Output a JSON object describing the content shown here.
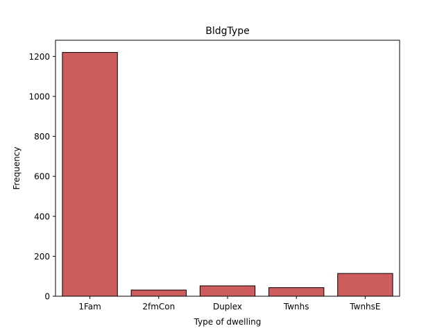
{
  "chart_data": {
    "type": "bar",
    "title": "BldgType",
    "xlabel": "Type of dwelling",
    "ylabel": "Frequency",
    "categories": [
      "1Fam",
      "2fmCon",
      "Duplex",
      "Twnhs",
      "TwnhsE"
    ],
    "values": [
      1220,
      31,
      52,
      43,
      114
    ],
    "ylim": [
      0,
      1281
    ],
    "yticks": [
      0,
      200,
      400,
      600,
      800,
      1000,
      1200
    ],
    "grid": false,
    "legend": "none",
    "colors": {
      "bar_fill": "#cd5c5c",
      "bar_edge": "#000000",
      "axes": "#000000"
    }
  }
}
